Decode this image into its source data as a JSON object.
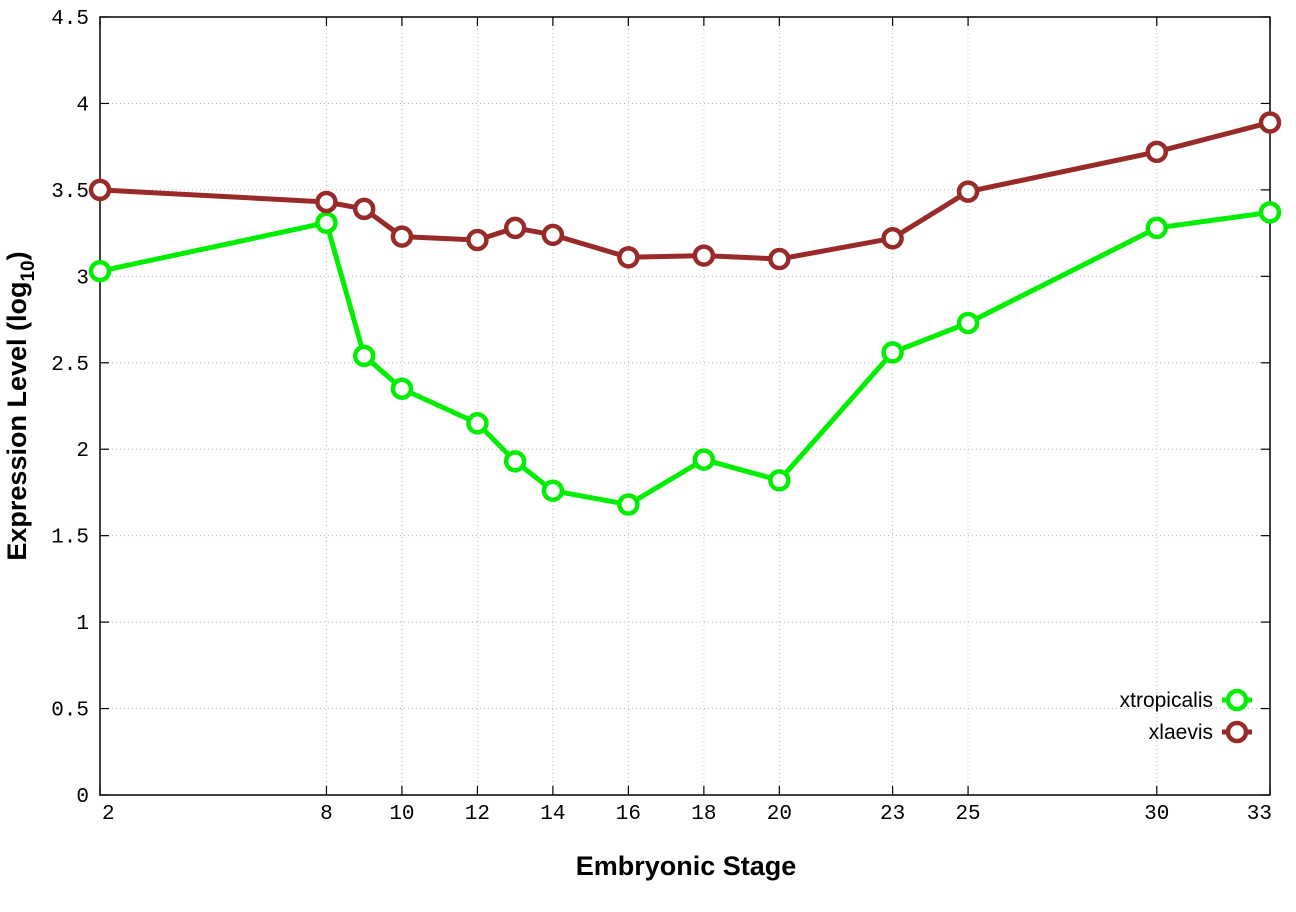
{
  "chart_data": {
    "type": "line",
    "xlabel": "Embryonic Stage",
    "ylabel": "Expression Level (log",
    "ylabel_subscript": "10",
    "ylabel_close": ")",
    "x_ticks": [
      2,
      8,
      10,
      12,
      14,
      16,
      18,
      20,
      23,
      25,
      30,
      33
    ],
    "x_tick_labels": [
      "2",
      "8",
      "10",
      "12",
      "14",
      "16",
      "18",
      "20",
      "23",
      "25",
      "30",
      "33"
    ],
    "xlim": [
      2,
      33
    ],
    "ylim": [
      0,
      4.5
    ],
    "y_ticks": [
      0,
      0.5,
      1,
      1.5,
      2,
      2.5,
      3,
      3.5,
      4,
      4.5
    ],
    "y_tick_labels": [
      "0",
      "0.5",
      "1",
      "1.5",
      "2",
      "2.5",
      "3",
      "3.5",
      "4",
      "4.5"
    ],
    "grid": true,
    "legend_position": "bottom-right",
    "series": [
      {
        "name": "xtropicalis",
        "color": "#00ee00",
        "x": [
          2,
          8,
          9,
          10,
          12,
          13,
          14,
          16,
          18,
          20,
          23,
          25,
          30,
          33
        ],
        "y": [
          3.03,
          3.31,
          2.54,
          2.35,
          2.15,
          1.93,
          1.76,
          1.68,
          1.94,
          1.82,
          2.56,
          2.73,
          3.28,
          3.37
        ]
      },
      {
        "name": "xlaevis",
        "color": "#992a2a",
        "x": [
          2,
          8,
          9,
          10,
          12,
          13,
          14,
          16,
          18,
          20,
          23,
          25,
          30,
          33
        ],
        "y": [
          3.5,
          3.43,
          3.39,
          3.23,
          3.21,
          3.28,
          3.24,
          3.11,
          3.12,
          3.1,
          3.22,
          3.49,
          3.72,
          3.89
        ]
      }
    ]
  }
}
